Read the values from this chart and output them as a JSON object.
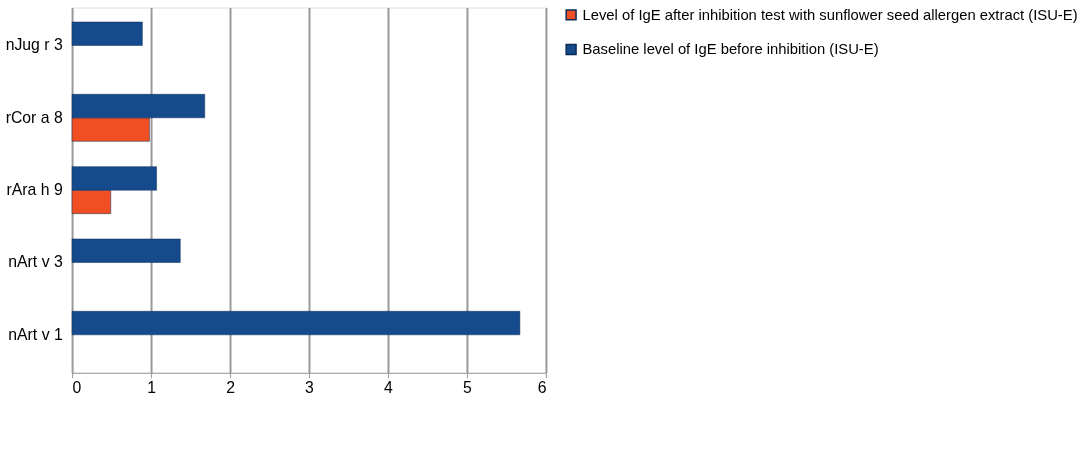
{
  "chart_data": {
    "type": "bar",
    "orientation": "horizontal",
    "categories": [
      "nJug r 3",
      "rCor a 8",
      "rAra h 9",
      "nArt v 3",
      "nArt v 1"
    ],
    "series": [
      {
        "name": "Level of IgE after inhibition test with sunflower seed allergen extract (ISU-E)",
        "color": "#f04e23",
        "values": [
          null,
          0.98,
          0.49,
          null,
          null
        ]
      },
      {
        "name": "Baseline level of IgE before inhibition (ISU-E)",
        "color": "#154b8c",
        "values": [
          0.89,
          1.68,
          1.07,
          1.37,
          5.67
        ]
      }
    ],
    "xlim": [
      0,
      6
    ],
    "xticks": [
      0,
      1,
      2,
      3,
      4,
      5,
      6
    ],
    "grid": "x",
    "legend": "right"
  }
}
